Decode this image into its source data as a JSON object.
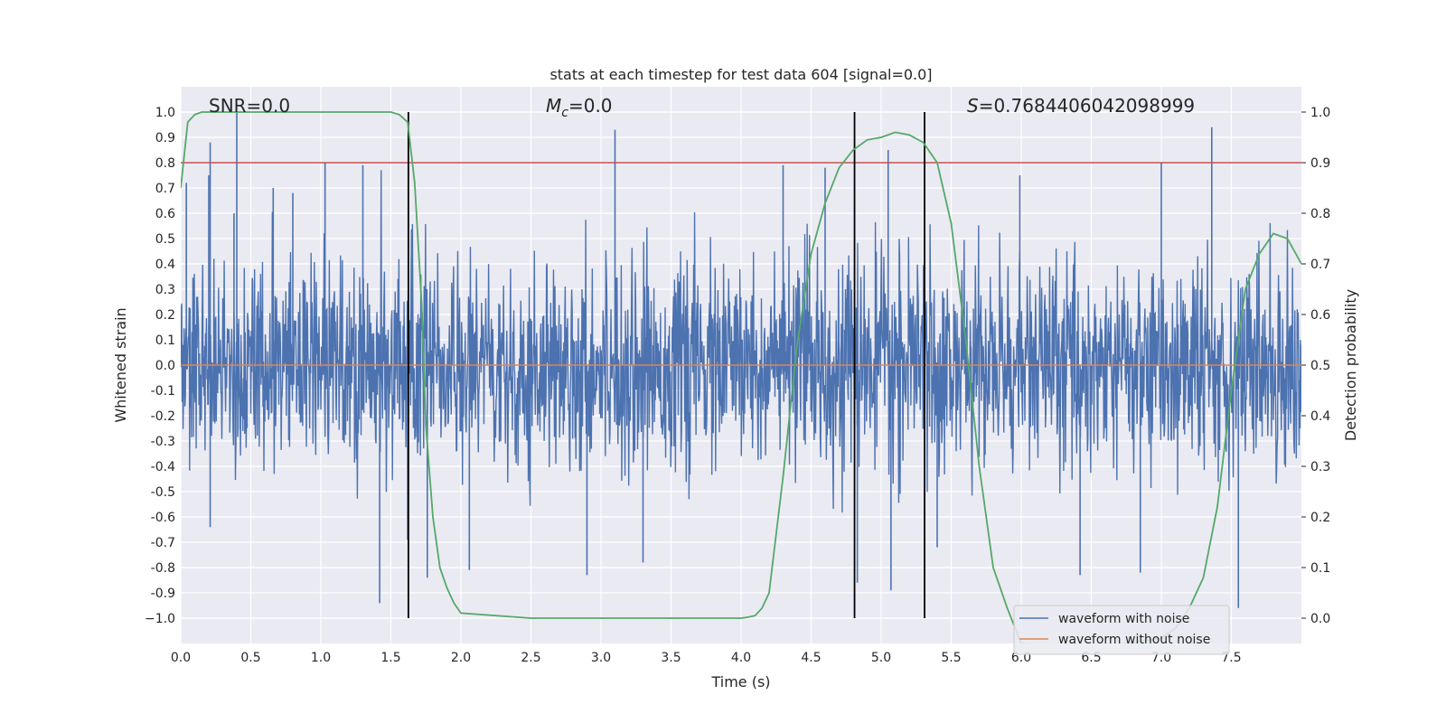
{
  "chart_data": {
    "type": "line",
    "title": "stats at each timestep for test data 604 [signal=0.0]",
    "xlabel": "Time (s)",
    "ylabel": "Whitened strain",
    "y2label": "Detection probability",
    "xlim": [
      0.0,
      8.0
    ],
    "ylim": [
      -1.1,
      1.1
    ],
    "y2lim": [
      -0.05,
      1.05
    ],
    "xticks": [
      0.0,
      0.5,
      1.0,
      1.5,
      2.0,
      2.5,
      3.0,
      3.5,
      4.0,
      4.5,
      5.0,
      5.5,
      6.0,
      6.5,
      7.0,
      7.5
    ],
    "xtick_labels": [
      "0.0",
      "0.5",
      "1.0",
      "1.5",
      "2.0",
      "2.5",
      "3.0",
      "3.5",
      "4.0",
      "4.5",
      "5.0",
      "5.5",
      "6.0",
      "6.5",
      "7.0",
      "7.5"
    ],
    "yticks": [
      1.0,
      0.9,
      0.8,
      0.7,
      0.6,
      0.5,
      0.4,
      0.3,
      0.2,
      0.1,
      0.0,
      -0.1,
      -0.2,
      -0.3,
      -0.4,
      -0.5,
      -0.6,
      -0.7,
      -0.8,
      -0.9,
      -1.0
    ],
    "ytick_labels": [
      "1.0",
      "0.9",
      "0.8",
      "0.7",
      "0.6",
      "0.5",
      "0.4",
      "0.3",
      "0.2",
      "0.1",
      "0.0",
      "-0.1",
      "-0.2",
      "-0.3",
      "-0.4",
      "-0.5",
      "-0.6",
      "-0.7",
      "-0.8",
      "-0.9",
      "−1.0"
    ],
    "y2ticks": [
      1.0,
      0.9,
      0.8,
      0.7,
      0.6,
      0.5,
      0.4,
      0.3,
      0.2,
      0.1,
      0.0
    ],
    "y2tick_labels": [
      "1.0",
      "0.9",
      "0.8",
      "0.7",
      "0.6",
      "0.5",
      "0.4",
      "0.3",
      "0.2",
      "0.1",
      "0.0"
    ],
    "grid": true,
    "annotations": {
      "snr": "SNR=0.0",
      "mc_symbol": "M",
      "mc_subscript": "c",
      "mc_value": "=0.0",
      "s_symbol": "S",
      "s_value": "=0.7684406042098999"
    },
    "threshold": 0.9,
    "vertical_lines": [
      1.625,
      4.81,
      5.31
    ],
    "legend": {
      "position": "lower-right",
      "entries": [
        "waveform with noise",
        "waveform without noise"
      ]
    },
    "series": [
      {
        "name": "waveform with noise",
        "axis": "left",
        "color": "#4c72b0",
        "description": "dense whitened noise samples filling roughly ±0.3 with spikes up to ~1.0",
        "peak_samples": [
          {
            "x": 0.04,
            "y": 0.72
          },
          {
            "x": 0.2,
            "y": 0.75
          },
          {
            "x": 0.21,
            "y": -0.64
          },
          {
            "x": 0.21,
            "y": 0.88
          },
          {
            "x": 0.38,
            "y": 0.6
          },
          {
            "x": 0.4,
            "y": 1.0
          },
          {
            "x": 0.66,
            "y": 0.7
          },
          {
            "x": 0.8,
            "y": 0.68
          },
          {
            "x": 1.03,
            "y": 0.8
          },
          {
            "x": 1.3,
            "y": 0.79
          },
          {
            "x": 1.42,
            "y": -0.94
          },
          {
            "x": 1.62,
            "y": -0.69
          },
          {
            "x": 1.76,
            "y": -0.84
          },
          {
            "x": 2.06,
            "y": -0.81
          },
          {
            "x": 2.9,
            "y": -0.83
          },
          {
            "x": 3.1,
            "y": 0.93
          },
          {
            "x": 3.3,
            "y": -0.78
          },
          {
            "x": 4.3,
            "y": 0.79
          },
          {
            "x": 4.6,
            "y": 0.78
          },
          {
            "x": 4.83,
            "y": -0.86
          },
          {
            "x": 5.05,
            "y": 0.85
          },
          {
            "x": 5.07,
            "y": -0.89
          },
          {
            "x": 5.4,
            "y": -0.72
          },
          {
            "x": 5.99,
            "y": 0.75
          },
          {
            "x": 6.42,
            "y": -0.83
          },
          {
            "x": 6.85,
            "y": -0.82
          },
          {
            "x": 7.0,
            "y": 0.8
          },
          {
            "x": 7.36,
            "y": 0.94
          },
          {
            "x": 7.55,
            "y": -0.96
          }
        ]
      },
      {
        "name": "waveform without noise",
        "axis": "left",
        "color": "#dd8452",
        "x": [
          0.0,
          8.0
        ],
        "y": [
          0.0,
          0.0
        ]
      },
      {
        "name": "detection probability",
        "axis": "right",
        "color": "#55a868",
        "x": [
          0.0,
          0.05,
          0.1,
          0.15,
          0.2,
          0.25,
          0.5,
          1.0,
          1.4,
          1.5,
          1.56,
          1.62,
          1.67,
          1.72,
          1.75,
          1.8,
          1.85,
          1.9,
          1.95,
          2.0,
          2.5,
          3.0,
          3.5,
          4.0,
          4.05,
          4.1,
          4.15,
          4.2,
          4.3,
          4.4,
          4.5,
          4.6,
          4.7,
          4.8,
          4.9,
          5.0,
          5.1,
          5.2,
          5.3,
          5.4,
          5.5,
          5.6,
          5.7,
          5.8,
          5.9,
          6.0,
          6.5,
          7.0,
          7.1,
          7.2,
          7.3,
          7.4,
          7.5,
          7.6,
          7.7,
          7.8,
          7.9,
          8.0
        ],
        "y": [
          0.85,
          0.98,
          0.995,
          1.0,
          1.0,
          1.0,
          1.0,
          1.0,
          1.0,
          1.0,
          0.995,
          0.98,
          0.86,
          0.62,
          0.38,
          0.2,
          0.1,
          0.06,
          0.03,
          0.01,
          0.0,
          0.0,
          0.0,
          0.0,
          0.002,
          0.005,
          0.02,
          0.05,
          0.28,
          0.54,
          0.72,
          0.82,
          0.89,
          0.925,
          0.945,
          0.95,
          0.96,
          0.955,
          0.94,
          0.9,
          0.78,
          0.56,
          0.3,
          0.1,
          0.02,
          -0.05,
          -0.06,
          -0.04,
          -0.02,
          0.02,
          0.08,
          0.22,
          0.45,
          0.65,
          0.72,
          0.76,
          0.75,
          0.7
        ]
      }
    ]
  }
}
